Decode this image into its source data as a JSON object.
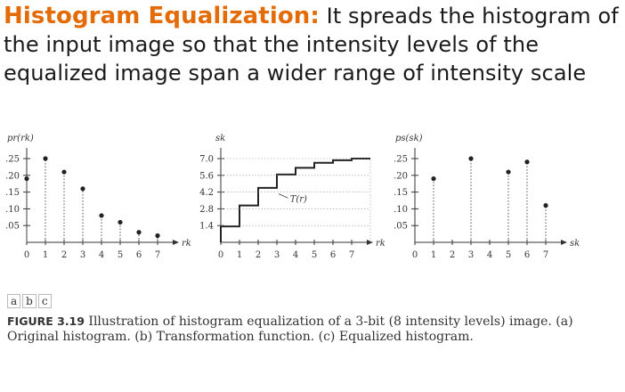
{
  "slide": {
    "heading": "Histogram Equalization:",
    "body": " It spreads the histogram of the input image so that the intensity levels of the equalized image span a wider range of intensity scale"
  },
  "figure": {
    "subfig_labels": [
      "a",
      "b",
      "c"
    ],
    "caption_label": "FIGURE 3.19",
    "caption_text": " Illustration of histogram equalization of a 3-bit (8 intensity levels) image. (a) Original histogram. (b) Transformation function. (c) Equalized histogram."
  },
  "chart_data": [
    {
      "type": "scatter",
      "ylabel": "pr(rk)",
      "xlabel": "rk",
      "x": [
        0,
        1,
        2,
        3,
        4,
        5,
        6,
        7
      ],
      "values": [
        0.19,
        0.25,
        0.21,
        0.16,
        0.08,
        0.06,
        0.03,
        0.02
      ],
      "yticks": [
        ".05",
        ".10",
        ".15",
        ".20",
        ".25"
      ],
      "xticks": [
        "0",
        "1",
        "2",
        "3",
        "4",
        "5",
        "6",
        "7"
      ],
      "ylim": [
        0,
        0.25
      ]
    },
    {
      "type": "line",
      "ylabel": "sk",
      "xlabel": "rk",
      "annotation": "T(r)",
      "x": [
        0,
        1,
        2,
        3,
        4,
        5,
        6,
        7
      ],
      "values": [
        1.33,
        3.08,
        4.55,
        5.67,
        6.23,
        6.65,
        6.86,
        7.0
      ],
      "yticks": [
        "1.4",
        "2.8",
        "4.2",
        "5.6",
        "7.0"
      ],
      "xticks": [
        "0",
        "1",
        "2",
        "3",
        "4",
        "5",
        "6",
        "7"
      ],
      "ylim": [
        0,
        7.0
      ]
    },
    {
      "type": "scatter",
      "ylabel": "ps(sk)",
      "xlabel": "sk",
      "x": [
        1,
        3,
        5,
        6,
        7
      ],
      "values": [
        0.19,
        0.25,
        0.21,
        0.24,
        0.11
      ],
      "yticks": [
        ".05",
        ".10",
        ".15",
        ".20",
        ".25"
      ],
      "xticks": [
        "0",
        "1",
        "2",
        "3",
        "4",
        "5",
        "6",
        "7"
      ],
      "ylim": [
        0,
        0.25
      ]
    }
  ]
}
